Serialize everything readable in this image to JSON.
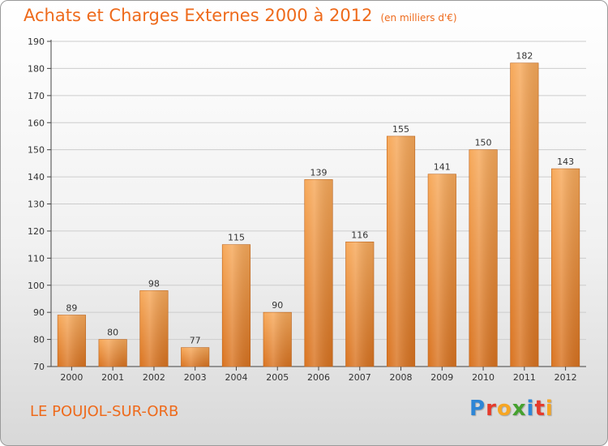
{
  "page": {
    "title": "Achats et Charges Externes 2000 à 2012",
    "unit": "(en milliers d'€)",
    "location": "LE POUJOL-SUR-ORB",
    "logo_text": "Proxiti"
  },
  "colors": {
    "accent": "#ee6a1b",
    "bar_top": "#f7a95a",
    "bar_bottom": "#d97320",
    "grid": "#cccccc"
  },
  "chart_data": {
    "type": "bar",
    "title": "Achats et Charges Externes 2000 à 2012",
    "subtitle": "(en milliers d'€)",
    "categories": [
      "2000",
      "2001",
      "2002",
      "2003",
      "2004",
      "2005",
      "2006",
      "2007",
      "2008",
      "2009",
      "2010",
      "2011",
      "2012"
    ],
    "values": [
      89,
      80,
      98,
      77,
      115,
      90,
      139,
      116,
      155,
      141,
      150,
      182,
      143
    ],
    "ylim": [
      70,
      190
    ],
    "yticks": [
      70,
      80,
      90,
      100,
      110,
      120,
      130,
      140,
      150,
      160,
      170,
      180,
      190
    ],
    "grid": true,
    "data_labels": true
  }
}
